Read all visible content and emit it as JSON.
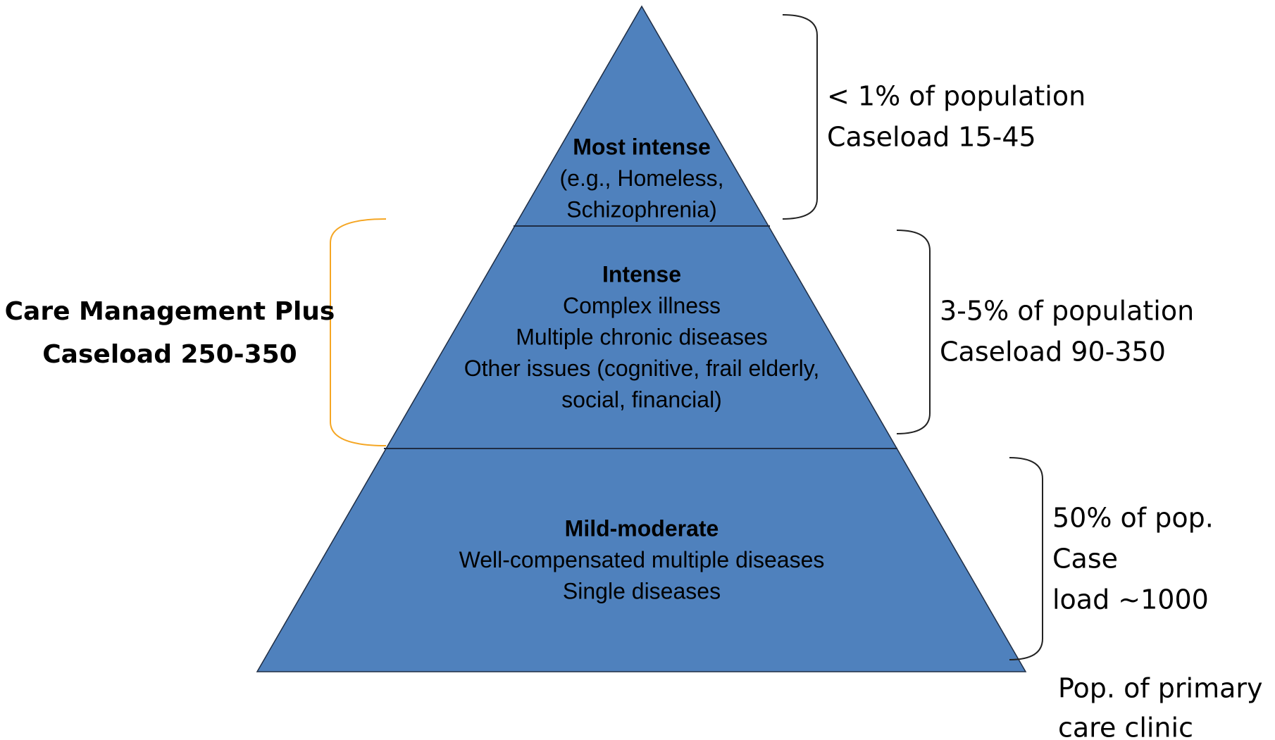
{
  "tiers": [
    {
      "title": "Most intense",
      "lines": [
        "(e.g., Homeless,",
        "Schizophrenia)"
      ]
    },
    {
      "title": "Intense",
      "lines": [
        "Complex illness",
        "Multiple chronic diseases",
        "Other issues (cognitive, frail elderly,",
        "social, financial)"
      ]
    },
    {
      "title": "Mild-moderate",
      "lines": [
        "Well-compensated multiple diseases",
        "Single diseases"
      ]
    }
  ],
  "right_notes": [
    {
      "lines": [
        "< 1% of population",
        "Caseload 15-45"
      ]
    },
    {
      "lines": [
        "3-5% of population",
        "Caseload 90-350"
      ]
    },
    {
      "lines": [
        "50% of pop.",
        "Case",
        " load ~1000"
      ]
    }
  ],
  "left_note": {
    "lines": [
      "Care Management Plus",
      "Caseload 250-350"
    ]
  },
  "base_caption": {
    "lines": [
      "Pop. of primary",
      "care clinic"
    ]
  }
}
